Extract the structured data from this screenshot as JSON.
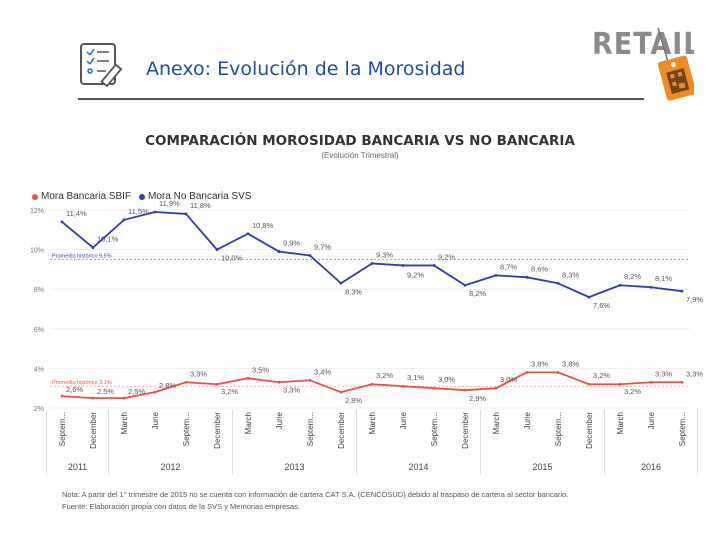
{
  "header": {
    "title": "Anexo: Evolución de la Morosidad"
  },
  "logo": {
    "text": "RETAIL",
    "color": "#8a8a8a",
    "tag_color": "#f08a24"
  },
  "chart_data": {
    "type": "line",
    "title": "COMPARACIÓN MOROSIDAD BANCARIA VS NO BANCARIA",
    "subtitle": "(Evolución Trimestral)",
    "categories": [
      "Septem...",
      "December",
      "March",
      "June",
      "Septem...",
      "December",
      "March",
      "June",
      "Septem...",
      "December",
      "March",
      "June",
      "Septem...",
      "December",
      "March",
      "June",
      "Septem...",
      "December",
      "March",
      "June",
      "Septem..."
    ],
    "year_labels": [
      {
        "label": "2011",
        "from": 0,
        "to": 1
      },
      {
        "label": "2012",
        "from": 2,
        "to": 5
      },
      {
        "label": "2013",
        "from": 6,
        "to": 9
      },
      {
        "label": "2014",
        "from": 10,
        "to": 13
      },
      {
        "label": "2015",
        "from": 14,
        "to": 17
      },
      {
        "label": "2016",
        "from": 18,
        "to": 20
      }
    ],
    "y_ticks": [
      "12%",
      "10%",
      "8%",
      "6%",
      "4%",
      "2%"
    ],
    "y_tick_values": [
      12,
      10,
      8,
      6,
      4,
      2
    ],
    "ylim": [
      2,
      12
    ],
    "series": [
      {
        "name": "Mora Bancaria SBIF",
        "color": "#e8514a",
        "values": [
          2.6,
          2.5,
          2.5,
          2.8,
          3.3,
          3.2,
          3.5,
          3.3,
          3.4,
          2.8,
          3.2,
          3.1,
          3.0,
          2.9,
          3.0,
          3.8,
          3.8,
          3.2,
          3.2,
          3.3,
          3.3
        ],
        "labels": [
          "2,6%",
          "2,5%",
          "2,5%",
          "2,8%",
          "3,3%",
          "3,2%",
          "3,5%",
          "3,3%",
          "3,4%",
          "2,8%",
          "3,2%",
          "3,1%",
          "3,0%",
          "2,9%",
          "3,0%",
          "3,8%",
          "3,8%",
          "3,2%",
          "3,2%",
          "3,3%",
          "3,3%"
        ]
      },
      {
        "name": "Mora No Bancaria SVS",
        "color": "#2f3ea8",
        "values": [
          11.4,
          10.1,
          11.5,
          11.9,
          11.8,
          10.0,
          10.8,
          9.9,
          9.7,
          8.3,
          9.3,
          9.2,
          9.2,
          8.2,
          8.7,
          8.6,
          8.3,
          7.6,
          8.2,
          8.1,
          7.9
        ],
        "labels": [
          "11,4%",
          "10,1%",
          "11,5%",
          "11,9%",
          "11,8%",
          "10,0%",
          "10,8%",
          "9,9%",
          "9,7%",
          "8,3%",
          "9,3%",
          "9,2%",
          "9,2%",
          "8,2%",
          "8,7%",
          "8,6%",
          "8,3%",
          "7,6%",
          "8,2%",
          "8,1%",
          "7,9%"
        ]
      }
    ],
    "reference_lines": [
      {
        "label": "Promedio histórico 9,5%",
        "value": 9.5,
        "color": "#2f3ea8"
      },
      {
        "label": "Promedio histórico 3,1%",
        "value": 3.1,
        "color": "#e8514a"
      }
    ]
  },
  "notes": {
    "line1": "Nota: A partir del 1° trimestre de 2015 no se cuenta con información de cartera CAT S.A. (CENCOSUD) debido al traspaso de cartera al sector bancario.",
    "line2": "Fuente: Elaboración propia con datos de la SVS y Memorias empresas."
  }
}
